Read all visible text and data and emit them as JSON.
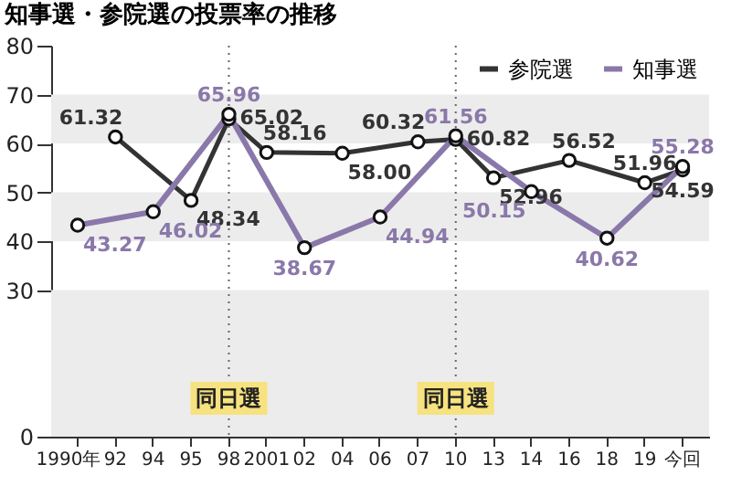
{
  "chart_data": {
    "type": "line",
    "title": "知事選・参院選の投票率の推移",
    "categories": [
      "1990年",
      "92",
      "94",
      "95",
      "98",
      "2001",
      "02",
      "04",
      "06",
      "07",
      "10",
      "13",
      "14",
      "16",
      "18",
      "19",
      "今回"
    ],
    "series": [
      {
        "name": "参院選",
        "color": "#333333",
        "values": [
          null,
          61.32,
          null,
          48.34,
          65.02,
          58.16,
          null,
          58.0,
          null,
          60.32,
          60.82,
          52.96,
          null,
          56.52,
          null,
          51.96,
          54.59
        ],
        "value_labels": [
          null,
          "61.32",
          null,
          "48.34",
          "65.02",
          "58.16",
          null,
          "58.00",
          null,
          "60.32",
          "60.82",
          "52.96",
          null,
          "56.52",
          null,
          "51.96",
          "54.59"
        ]
      },
      {
        "name": "知事選",
        "color": "#8a78aa",
        "values": [
          43.27,
          null,
          46.02,
          null,
          65.96,
          null,
          38.67,
          null,
          44.94,
          null,
          61.56,
          null,
          50.15,
          null,
          40.62,
          null,
          55.28
        ],
        "value_labels": [
          "43.27",
          null,
          "46.02",
          null,
          "65.96",
          null,
          "38.67",
          null,
          "44.94",
          null,
          "61.56",
          null,
          "50.15",
          null,
          "40.62",
          null,
          "55.28"
        ]
      }
    ],
    "ylim": [
      0,
      80
    ],
    "yticks": [
      0,
      30,
      40,
      50,
      60,
      70,
      80
    ],
    "bands": [
      {
        "axis": "y",
        "from": 0,
        "to": 30,
        "color": "#ececec"
      },
      {
        "axis": "y",
        "from": 40,
        "to": 50,
        "color": "#ececec"
      },
      {
        "axis": "y",
        "from": 60,
        "to": 70,
        "color": "#ececec"
      }
    ],
    "ref_lines": [
      {
        "axis": "x",
        "value": "98",
        "label": "同日選",
        "color": "#666666",
        "line_style": "dotted"
      },
      {
        "axis": "x",
        "value": "10",
        "label": "同日選",
        "color": "#666666",
        "line_style": "dotted"
      }
    ],
    "marker": "circle",
    "line_style": "solid",
    "legend": "top right"
  }
}
